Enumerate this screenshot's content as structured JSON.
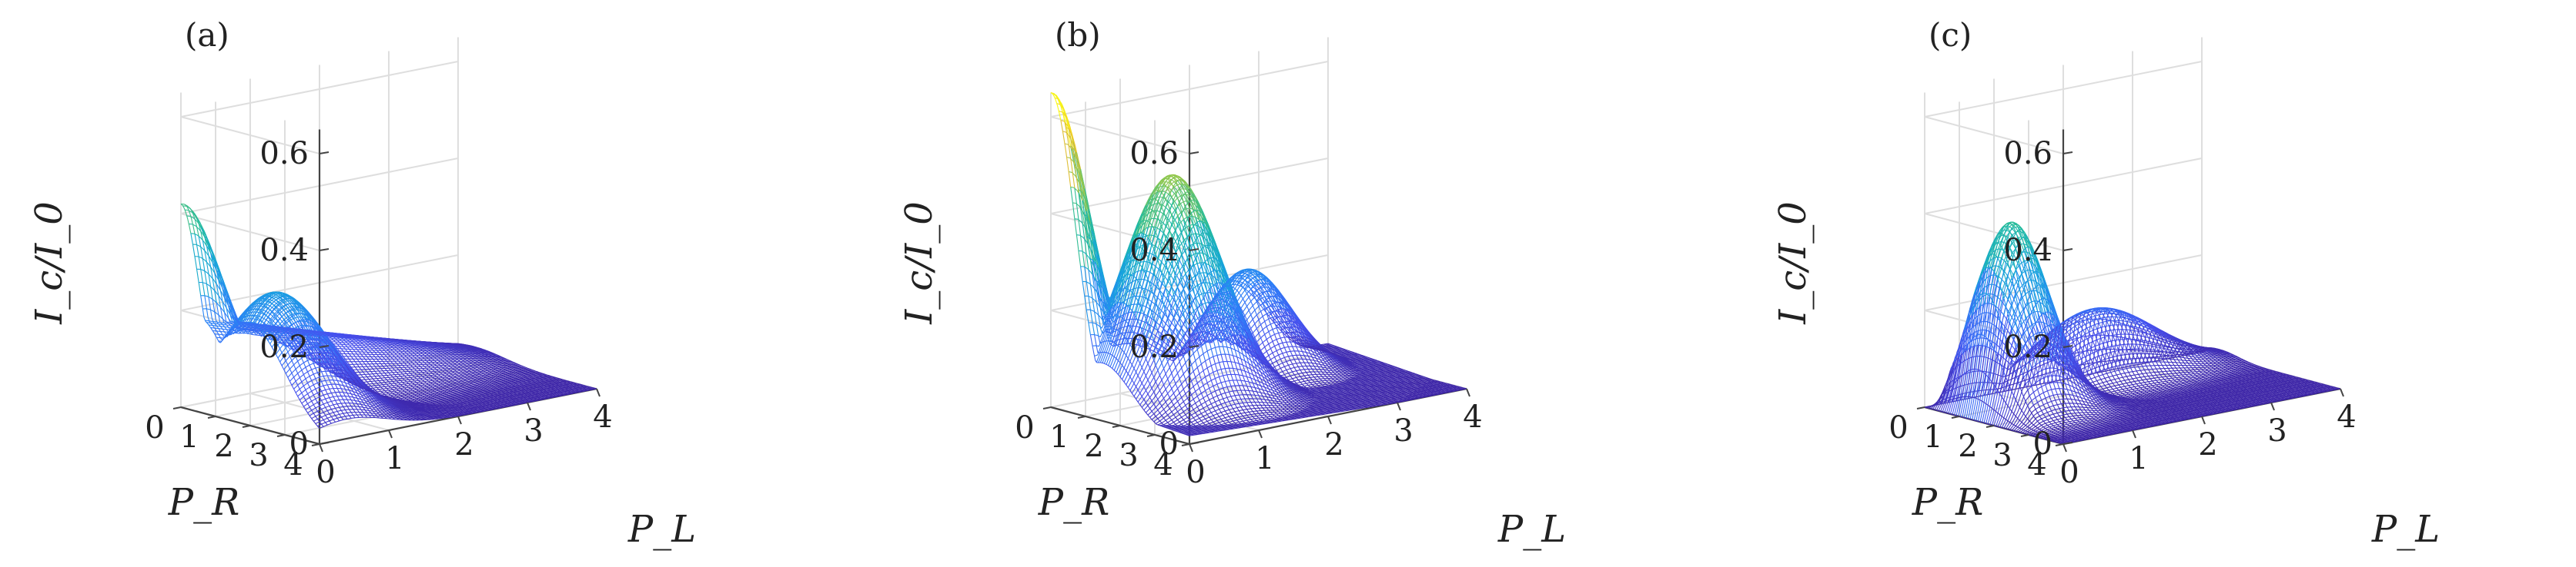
{
  "panels": [
    {
      "label": "(a)"
    },
    {
      "label": "(b)"
    },
    {
      "label": "(c)"
    }
  ],
  "chart_data": [
    {
      "type": "surface",
      "panel": "(a)",
      "zlabel": "I_c/I_0",
      "xlabel": "P_L",
      "ylabel": "P_R",
      "xlim": [
        0,
        4
      ],
      "ylim": [
        0,
        4
      ],
      "zlim": [
        0,
        0.65
      ],
      "xticks": [
        0,
        1,
        2,
        3,
        4
      ],
      "yticks": [
        0,
        1,
        2,
        3,
        4
      ],
      "zticks": [
        0,
        0.2,
        0.4,
        0.6
      ],
      "xtick_labels": [
        "0",
        "1",
        "2",
        "3",
        "4"
      ],
      "ytick_labels": [
        "0",
        "1",
        "2",
        "3",
        "4"
      ],
      "ztick_labels": [
        "0",
        "0.2",
        "0.4",
        "0.6"
      ],
      "grid": true,
      "colormap": "parula",
      "peaks": [
        {
          "P_L": 0,
          "P_R": 0,
          "I": 0.42
        },
        {
          "P_L": 0.5,
          "P_R": 2.0,
          "I": 0.28
        },
        {
          "P_L": 2.0,
          "P_R": 0.6,
          "I": 0.2
        }
      ]
    },
    {
      "type": "surface",
      "panel": "(b)",
      "zlabel": "I_c/I_0",
      "xlabel": "P_L",
      "ylabel": "P_R",
      "xlim": [
        0,
        4
      ],
      "ylim": [
        0,
        4
      ],
      "zlim": [
        0,
        0.65
      ],
      "xticks": [
        0,
        1,
        2,
        3,
        4
      ],
      "yticks": [
        0,
        1,
        2,
        3,
        4
      ],
      "zticks": [
        0,
        0.2,
        0.4,
        0.6
      ],
      "xtick_labels": [
        "0",
        "1",
        "2",
        "3",
        "4"
      ],
      "ytick_labels": [
        "0",
        "1",
        "2",
        "3",
        "4"
      ],
      "ztick_labels": [
        "0",
        "0.2",
        "0.4",
        "0.6"
      ],
      "grid": true,
      "colormap": "parula",
      "peaks": [
        {
          "P_L": 0,
          "P_R": 0,
          "I": 0.65
        },
        {
          "P_L": 1.0,
          "P_R": 1.5,
          "I": 0.48
        },
        {
          "P_L": 2.6,
          "P_R": 0.5,
          "I": 0.22
        }
      ]
    },
    {
      "type": "surface",
      "panel": "(c)",
      "zlabel": "I_c/I_0",
      "xlabel": "P_L",
      "ylabel": "P_R",
      "xlim": [
        0,
        4
      ],
      "ylim": [
        0,
        4
      ],
      "zlim": [
        0,
        0.65
      ],
      "xticks": [
        0,
        1,
        2,
        3,
        4
      ],
      "yticks": [
        0,
        1,
        2,
        3,
        4
      ],
      "zticks": [
        0,
        0.2,
        0.4,
        0.6
      ],
      "xtick_labels": [
        "0",
        "1",
        "2",
        "3",
        "4"
      ],
      "ytick_labels": [
        "0",
        "1",
        "2",
        "3",
        "4"
      ],
      "ztick_labels": [
        "0",
        "0.2",
        "0.4",
        "0.6"
      ],
      "grid": true,
      "colormap": "parula",
      "peaks": [
        {
          "P_L": 0,
          "P_R": 0,
          "I": 0.0
        },
        {
          "P_L": 0.6,
          "P_R": 1.3,
          "I": 0.39
        },
        {
          "P_L": 2.2,
          "P_R": 0.5,
          "I": 0.15
        }
      ]
    }
  ]
}
